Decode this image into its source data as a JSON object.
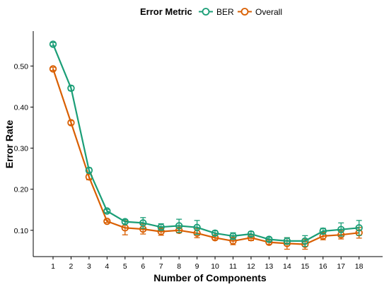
{
  "chart_data": {
    "type": "line",
    "legend": {
      "title": "Error Metric",
      "placement": "top"
    },
    "xlabel": "Number of Components",
    "ylabel": "Error Rate",
    "x": [
      1,
      2,
      3,
      4,
      5,
      6,
      7,
      8,
      9,
      10,
      11,
      12,
      13,
      14,
      15,
      16,
      17,
      18
    ],
    "xticks": [
      "1",
      "2",
      "3",
      "4",
      "5",
      "6",
      "7",
      "8",
      "9",
      "10",
      "11",
      "12",
      "13",
      "14",
      "15",
      "16",
      "17",
      "18"
    ],
    "yticks": [
      "0.10",
      "0.20",
      "0.30",
      "0.40",
      "0.50"
    ],
    "ytick_values": [
      0.1,
      0.2,
      0.3,
      0.4,
      0.5
    ],
    "ylim": [
      0.036,
      0.585
    ],
    "grid": false,
    "series": [
      {
        "name": "BER",
        "color": "#1b9e77",
        "values": [
          0.553,
          0.446,
          0.246,
          0.147,
          0.121,
          0.118,
          0.108,
          0.111,
          0.107,
          0.093,
          0.086,
          0.091,
          0.078,
          0.074,
          0.074,
          0.098,
          0.102,
          0.106
        ],
        "errors": [
          0.004,
          0.006,
          0.006,
          0.004,
          0.005,
          0.013,
          0.008,
          0.016,
          0.017,
          0.006,
          0.008,
          0.006,
          0.005,
          0.008,
          0.013,
          0.007,
          0.016,
          0.018
        ]
      },
      {
        "name": "Overall",
        "color": "#d95f02",
        "values": [
          0.493,
          0.362,
          0.23,
          0.122,
          0.106,
          0.103,
          0.097,
          0.1,
          0.093,
          0.082,
          0.074,
          0.082,
          0.071,
          0.068,
          0.066,
          0.086,
          0.089,
          0.094
        ],
        "errors": [
          0.004,
          0.005,
          0.007,
          0.003,
          0.017,
          0.012,
          0.009,
          0.006,
          0.011,
          0.005,
          0.009,
          0.007,
          0.005,
          0.014,
          0.012,
          0.009,
          0.01,
          0.013
        ]
      }
    ]
  }
}
